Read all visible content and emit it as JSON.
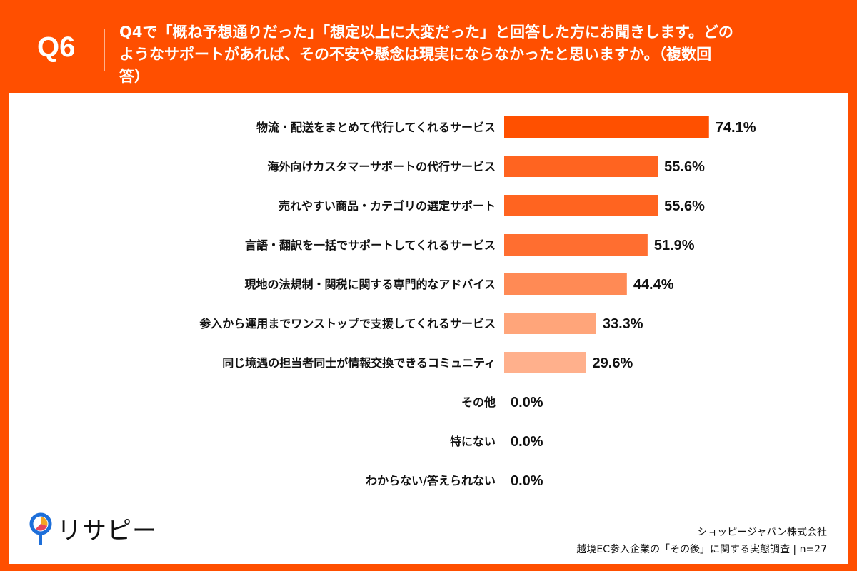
{
  "header": {
    "question_number": "Q6",
    "title": "Q4で「概ね予想通りだった」「想定以上に大変だった」と回答した方にお聞きします。どのようなサポートがあれば、その不安や懸念は現実にならなかったと思いますか。（複数回答）"
  },
  "chart_data": {
    "type": "bar",
    "orientation": "horizontal",
    "categories": [
      "物流・配送をまとめて代行してくれるサービス",
      "海外向けカスタマーサポートの代行サービス",
      "売れやすい商品・カテゴリの選定サポート",
      "言語・翻訳を一括でサポートしてくれるサービス",
      "現地の法規制・関税に関する専門的なアドバイス",
      "参入から運用までワンストップで支援してくれるサービス",
      "同じ境遇の担当者同士が情報交換できるコミュニティ",
      "その他",
      "特にない",
      "わからない/答えられない"
    ],
    "values": [
      74.1,
      55.6,
      55.6,
      51.9,
      44.4,
      33.3,
      29.6,
      0.0,
      0.0,
      0.0
    ],
    "labels": [
      "74.1%",
      "55.6%",
      "55.6%",
      "51.9%",
      "44.4%",
      "33.3%",
      "29.6%",
      "0.0%",
      "0.0%",
      "0.0%"
    ],
    "colors": [
      "#ff5000",
      "#ff6420",
      "#ff6420",
      "#ff6e30",
      "#ff8a55",
      "#ffa57a",
      "#ffb08c",
      "#ffc0a0",
      "#ffc0a0",
      "#ffc0a0"
    ],
    "xlim": [
      0,
      100
    ],
    "grid": false
  },
  "footer": {
    "company": "ショッピージャパン株式会社",
    "survey": "越境EC参入企業の「その後」に関する実態調査 | n=27"
  },
  "logo": {
    "text": "リサピー"
  },
  "colors": {
    "frame": "#ff4f00"
  }
}
